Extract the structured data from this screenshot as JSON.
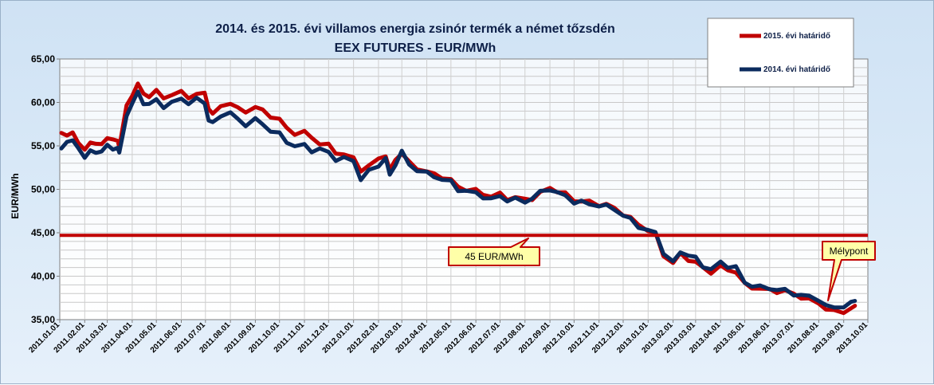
{
  "chart_data": {
    "type": "line",
    "title": "2014. és 2015. évi villamos energia zsinór termék a német tőzsdén",
    "subtitle": "EEX FUTURES - EUR/MWh",
    "ylabel": "EUR/MWh",
    "xlabel": "",
    "ylim": [
      35,
      65
    ],
    "yticks": [
      "35,00",
      "40,00",
      "45,00",
      "50,00",
      "55,00",
      "60,00",
      "65,00"
    ],
    "ytick_values": [
      35,
      40,
      45,
      50,
      55,
      60,
      65
    ],
    "xticks": [
      "2011.01.01",
      "2011.02.01",
      "2011.03.01",
      "2011.04.01",
      "2011.05.01",
      "2011.06.01",
      "2011.07.01",
      "2011.08.01",
      "2011.09.01",
      "2011.10.01",
      "2011.11.01",
      "2011.12.01",
      "2012.01.01",
      "2012.02.01",
      "2012.03.01",
      "2012.04.01",
      "2012.05.01",
      "2012.06.01",
      "2012.07.01",
      "2012.08.01",
      "2012.09.01",
      "2012.10.01",
      "2012.11.01",
      "2012.12.01",
      "2013.01.01",
      "2013.02.01",
      "2013.03.01",
      "2013.04.01",
      "2013.05.01",
      "2013.06.01",
      "2013.07.01",
      "2013.08.01",
      "2013.09.01",
      "2013.10.01"
    ],
    "grid": true,
    "legend_position": "top-right",
    "series": [
      {
        "name": "2015. évi határidő",
        "color": "#c00000",
        "x": [
          "2011.01.03",
          "2011.01.10",
          "2011.01.17",
          "2011.01.24",
          "2011.02.01",
          "2011.02.08",
          "2011.02.15",
          "2011.02.22",
          "2011.03.01",
          "2011.03.08",
          "2011.03.14",
          "2011.03.16",
          "2011.03.25",
          "2011.04.01",
          "2011.04.08",
          "2011.04.15",
          "2011.04.22",
          "2011.05.01",
          "2011.05.10",
          "2011.05.20",
          "2011.06.01",
          "2011.06.10",
          "2011.06.20",
          "2011.06.30",
          "2011.07.05",
          "2011.07.10",
          "2011.07.20",
          "2011.08.01",
          "2011.08.10",
          "2011.08.20",
          "2011.09.01",
          "2011.09.10",
          "2011.09.20",
          "2011.10.01",
          "2011.10.10",
          "2011.10.20",
          "2011.11.01",
          "2011.11.10",
          "2011.11.20",
          "2011.12.01",
          "2011.12.10",
          "2011.12.20",
          "2012.01.01",
          "2012.01.10",
          "2012.01.20",
          "2012.02.01",
          "2012.02.10",
          "2012.02.15",
          "2012.02.22",
          "2012.03.01",
          "2012.03.10",
          "2012.03.20",
          "2012.04.01",
          "2012.04.10",
          "2012.04.20",
          "2012.05.01",
          "2012.05.10",
          "2012.05.20",
          "2012.06.01",
          "2012.06.10",
          "2012.06.20",
          "2012.07.01",
          "2012.07.10",
          "2012.07.20",
          "2012.08.01",
          "2012.08.10",
          "2012.08.20",
          "2012.09.01",
          "2012.09.10",
          "2012.09.20",
          "2012.10.01",
          "2012.10.10",
          "2012.10.20",
          "2012.11.01",
          "2012.11.10",
          "2012.11.20",
          "2012.12.01",
          "2012.12.10",
          "2012.12.20",
          "2013.01.01",
          "2013.01.10",
          "2013.01.20",
          "2013.02.01",
          "2013.02.10",
          "2013.02.20",
          "2013.03.01",
          "2013.03.10",
          "2013.03.20",
          "2013.04.01",
          "2013.04.10",
          "2013.04.20",
          "2013.05.01",
          "2013.05.10",
          "2013.05.20",
          "2013.06.01",
          "2013.06.10",
          "2013.06.20",
          "2013.07.01",
          "2013.07.10",
          "2013.07.20",
          "2013.08.01",
          "2013.08.10",
          "2013.08.20",
          "2013.09.01",
          "2013.09.10",
          "2013.09.15"
        ],
        "values": [
          56.5,
          56.0,
          56.8,
          55.2,
          54.5,
          55.6,
          55.0,
          55.3,
          56.0,
          55.5,
          55.8,
          54.8,
          59.5,
          61.0,
          62.0,
          61.0,
          60.8,
          61.2,
          60.6,
          60.9,
          61.1,
          60.7,
          60.9,
          61.0,
          59.5,
          58.5,
          59.6,
          60.0,
          59.2,
          59.0,
          59.5,
          59.0,
          58.5,
          58.0,
          57.0,
          56.5,
          56.5,
          56.0,
          55.3,
          55.0,
          54.3,
          54.0,
          53.5,
          52.3,
          52.6,
          53.5,
          54.0,
          52.0,
          53.5,
          54.2,
          53.0,
          52.5,
          52.0,
          51.7,
          51.5,
          51.0,
          50.3,
          50.0,
          49.8,
          49.5,
          49.2,
          49.4,
          49.0,
          49.0,
          48.8,
          49.0,
          49.5,
          50.2,
          49.8,
          49.4,
          48.8,
          48.6,
          48.5,
          48.3,
          48.2,
          47.8,
          47.2,
          46.6,
          46.0,
          45.3,
          44.8,
          42.5,
          41.5,
          42.5,
          42.0,
          41.5,
          41.0,
          40.5,
          41.0,
          40.8,
          40.5,
          39.0,
          38.8,
          38.5,
          38.4,
          38.3,
          38.2,
          38.0,
          37.6,
          37.2,
          37.0,
          36.2,
          35.9,
          36.0,
          36.2,
          36.5
        ]
      },
      {
        "name": "2014. évi határidő",
        "color": "#0b2b5e",
        "x": [
          "2011.01.03",
          "2011.01.10",
          "2011.01.17",
          "2011.01.24",
          "2011.02.01",
          "2011.02.08",
          "2011.02.15",
          "2011.02.22",
          "2011.03.01",
          "2011.03.08",
          "2011.03.14",
          "2011.03.16",
          "2011.03.25",
          "2011.04.01",
          "2011.04.08",
          "2011.04.15",
          "2011.04.22",
          "2011.05.01",
          "2011.05.10",
          "2011.05.20",
          "2011.06.01",
          "2011.06.10",
          "2011.06.20",
          "2011.06.30",
          "2011.07.05",
          "2011.07.10",
          "2011.07.20",
          "2011.08.01",
          "2011.08.10",
          "2011.08.20",
          "2011.09.01",
          "2011.09.10",
          "2011.09.20",
          "2011.10.01",
          "2011.10.10",
          "2011.10.20",
          "2011.11.01",
          "2011.11.10",
          "2011.11.20",
          "2011.12.01",
          "2011.12.10",
          "2011.12.20",
          "2012.01.01",
          "2012.01.10",
          "2012.01.20",
          "2012.02.01",
          "2012.02.10",
          "2012.02.15",
          "2012.02.22",
          "2012.03.01",
          "2012.03.10",
          "2012.03.20",
          "2012.04.01",
          "2012.04.10",
          "2012.04.20",
          "2012.05.01",
          "2012.05.10",
          "2012.05.20",
          "2012.06.01",
          "2012.06.10",
          "2012.06.20",
          "2012.07.01",
          "2012.07.10",
          "2012.07.20",
          "2012.08.01",
          "2012.08.10",
          "2012.08.20",
          "2012.09.01",
          "2012.09.10",
          "2012.09.20",
          "2012.10.01",
          "2012.10.10",
          "2012.10.20",
          "2012.11.01",
          "2012.11.10",
          "2012.11.20",
          "2012.12.01",
          "2012.12.10",
          "2012.12.20",
          "2013.01.01",
          "2013.01.10",
          "2013.01.20",
          "2013.02.01",
          "2013.02.10",
          "2013.02.20",
          "2013.03.01",
          "2013.03.10",
          "2013.03.20",
          "2013.04.01",
          "2013.04.10",
          "2013.04.20",
          "2013.05.01",
          "2013.05.10",
          "2013.05.20",
          "2013.06.01",
          "2013.06.10",
          "2013.06.20",
          "2013.07.01",
          "2013.07.10",
          "2013.07.20",
          "2013.08.01",
          "2013.08.10",
          "2013.08.20",
          "2013.09.01",
          "2013.09.10",
          "2013.09.15"
        ],
        "values": [
          54.5,
          55.5,
          55.8,
          54.5,
          53.8,
          54.5,
          54.0,
          54.6,
          55.0,
          54.5,
          55.0,
          54.0,
          58.5,
          60.0,
          61.0,
          60.0,
          59.8,
          60.2,
          59.6,
          59.9,
          60.4,
          60.0,
          60.3,
          60.0,
          58.0,
          57.5,
          58.6,
          58.8,
          58.0,
          57.5,
          58.0,
          57.5,
          56.8,
          56.3,
          55.5,
          55.0,
          55.0,
          54.5,
          54.6,
          54.2,
          53.5,
          53.5,
          53.3,
          51.2,
          52.0,
          52.8,
          53.6,
          51.5,
          53.0,
          54.3,
          52.8,
          52.3,
          51.8,
          51.5,
          51.2,
          50.8,
          50.0,
          49.8,
          49.5,
          49.2,
          48.8,
          49.2,
          48.8,
          48.8,
          48.6,
          49.0,
          49.6,
          50.1,
          49.6,
          49.2,
          48.6,
          48.5,
          48.3,
          48.2,
          48.0,
          47.8,
          47.0,
          46.5,
          45.8,
          45.2,
          45.0,
          42.8,
          41.5,
          42.8,
          42.5,
          42.0,
          41.2,
          40.8,
          41.5,
          41.2,
          41.0,
          39.2,
          39.0,
          38.7,
          38.6,
          38.5,
          38.3,
          38.0,
          37.8,
          37.6,
          37.4,
          36.5,
          36.4,
          36.6,
          36.8,
          37.3
        ]
      }
    ],
    "reference_line": {
      "value": 44.7,
      "color": "#c00000"
    },
    "annotations": [
      {
        "text": "45 EUR/MWh",
        "x": "2012.07.15",
        "y": 44.7
      },
      {
        "text": "Mélypont",
        "x": "2013.08.10",
        "y": 36.7
      }
    ]
  }
}
